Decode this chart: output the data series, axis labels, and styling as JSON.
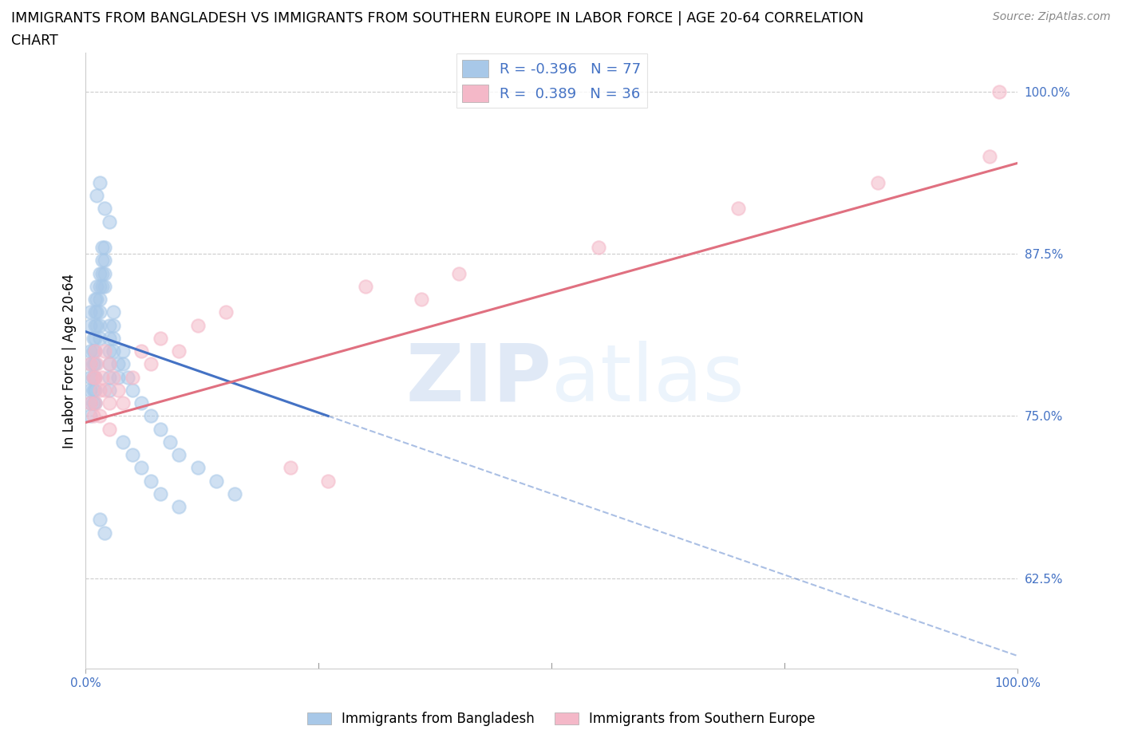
{
  "title_line1": "IMMIGRANTS FROM BANGLADESH VS IMMIGRANTS FROM SOUTHERN EUROPE IN LABOR FORCE | AGE 20-64 CORRELATION",
  "title_line2": "CHART",
  "source": "Source: ZipAtlas.com",
  "ylabel": "In Labor Force | Age 20-64",
  "legend_label1": "Immigrants from Bangladesh",
  "legend_label2": "Immigrants from Southern Europe",
  "R1": -0.396,
  "N1": 77,
  "R2": 0.389,
  "N2": 36,
  "color_blue": "#a8c8e8",
  "color_pink": "#f4b8c8",
  "color_blue_line": "#4472c4",
  "color_pink_line": "#e07080",
  "xlim": [
    0.0,
    1.0
  ],
  "ylim": [
    0.555,
    1.03
  ],
  "yticks": [
    0.625,
    0.75,
    0.875,
    1.0
  ],
  "ytick_labels": [
    "62.5%",
    "75.0%",
    "87.5%",
    "100.0%"
  ],
  "xtick_labels": [
    "0.0%",
    "100.0%"
  ],
  "xticks": [
    0.0,
    1.0
  ],
  "watermark_zip": "ZIP",
  "watermark_atlas": "atlas",
  "blue_line_x0": 0.0,
  "blue_line_y0": 0.815,
  "blue_line_x1": 1.0,
  "blue_line_y1": 0.565,
  "blue_line_solid_end": 0.26,
  "pink_line_x0": 0.0,
  "pink_line_y0": 0.745,
  "pink_line_x1": 1.0,
  "pink_line_y1": 0.945,
  "scatter_blue_x": [
    0.005,
    0.005,
    0.005,
    0.005,
    0.005,
    0.005,
    0.005,
    0.005,
    0.008,
    0.008,
    0.008,
    0.008,
    0.008,
    0.008,
    0.01,
    0.01,
    0.01,
    0.01,
    0.01,
    0.01,
    0.01,
    0.01,
    0.01,
    0.012,
    0.012,
    0.012,
    0.012,
    0.015,
    0.015,
    0.015,
    0.015,
    0.015,
    0.015,
    0.018,
    0.018,
    0.018,
    0.02,
    0.02,
    0.02,
    0.02,
    0.025,
    0.025,
    0.025,
    0.025,
    0.025,
    0.025,
    0.03,
    0.03,
    0.03,
    0.03,
    0.035,
    0.035,
    0.04,
    0.04,
    0.045,
    0.05,
    0.06,
    0.07,
    0.08,
    0.09,
    0.1,
    0.12,
    0.14,
    0.16,
    0.04,
    0.05,
    0.06,
    0.07,
    0.08,
    0.1,
    0.02,
    0.025,
    0.015,
    0.018,
    0.012,
    0.015,
    0.02
  ],
  "scatter_blue_y": [
    0.8,
    0.79,
    0.78,
    0.77,
    0.76,
    0.75,
    0.82,
    0.83,
    0.81,
    0.8,
    0.79,
    0.78,
    0.77,
    0.76,
    0.84,
    0.83,
    0.82,
    0.81,
    0.8,
    0.79,
    0.78,
    0.77,
    0.76,
    0.85,
    0.84,
    0.83,
    0.82,
    0.86,
    0.85,
    0.84,
    0.83,
    0.82,
    0.81,
    0.87,
    0.86,
    0.85,
    0.88,
    0.87,
    0.86,
    0.85,
    0.82,
    0.81,
    0.8,
    0.79,
    0.78,
    0.77,
    0.83,
    0.82,
    0.81,
    0.8,
    0.79,
    0.78,
    0.8,
    0.79,
    0.78,
    0.77,
    0.76,
    0.75,
    0.74,
    0.73,
    0.72,
    0.71,
    0.7,
    0.69,
    0.73,
    0.72,
    0.71,
    0.7,
    0.69,
    0.68,
    0.91,
    0.9,
    0.93,
    0.88,
    0.92,
    0.67,
    0.66
  ],
  "scatter_pink_x": [
    0.005,
    0.005,
    0.008,
    0.008,
    0.01,
    0.01,
    0.01,
    0.012,
    0.015,
    0.015,
    0.018,
    0.02,
    0.02,
    0.025,
    0.025,
    0.025,
    0.03,
    0.035,
    0.04,
    0.05,
    0.06,
    0.07,
    0.08,
    0.1,
    0.12,
    0.15,
    0.22,
    0.26,
    0.3,
    0.36,
    0.4,
    0.55,
    0.7,
    0.85,
    0.97,
    0.98
  ],
  "scatter_pink_y": [
    0.79,
    0.76,
    0.78,
    0.75,
    0.8,
    0.78,
    0.76,
    0.79,
    0.77,
    0.75,
    0.78,
    0.8,
    0.77,
    0.79,
    0.76,
    0.74,
    0.78,
    0.77,
    0.76,
    0.78,
    0.8,
    0.79,
    0.81,
    0.8,
    0.82,
    0.83,
    0.71,
    0.7,
    0.85,
    0.84,
    0.86,
    0.88,
    0.91,
    0.93,
    0.95,
    1.0
  ]
}
